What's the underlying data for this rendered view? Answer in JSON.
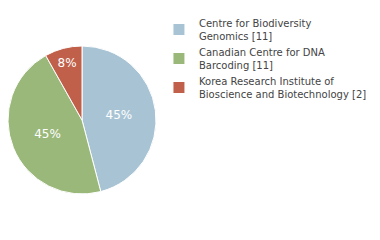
{
  "chart_data": {
    "type": "pie",
    "categories": [
      "Centre for Biodiversity\nGenomics [11]",
      "Canadian Centre for DNA\nBarcoding [11]",
      "Korea Research Institute of\nBioscience and Biotechnology [2]"
    ],
    "values": [
      45,
      45,
      8
    ],
    "value_labels": [
      "45%",
      "45%",
      "8%"
    ],
    "data_labels": true,
    "colors": [
      "#a8c4d4",
      "#9ab87a",
      "#c0604a"
    ],
    "legend": "right"
  }
}
